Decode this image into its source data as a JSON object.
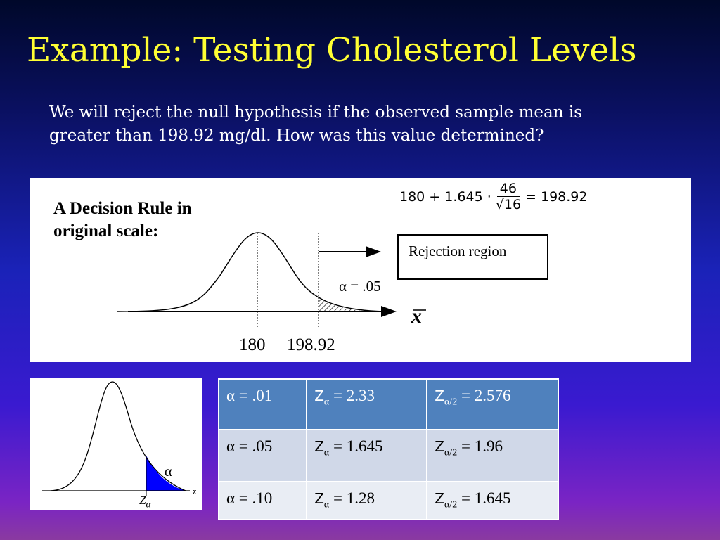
{
  "title": "Example: Testing Cholesterol Levels",
  "body": {
    "line1": "We will reject the null hypothesis if the observed sample mean is",
    "line2": "greater than 198.92 mg/dl.  How was this value determined?"
  },
  "diagram": {
    "heading_line1": "A Decision Rule in",
    "heading_line2": "original scale:",
    "formula": {
      "lhs": "180 + 1.645 ·",
      "numerator": "46",
      "denominator": "√16",
      "rhs": "= 198.92"
    },
    "rejection_label": "Rejection region",
    "alpha_label": "α = .05",
    "axis_label": "x",
    "tick_mean": "180",
    "tick_critical": "198.92"
  },
  "small_diagram": {
    "alpha": "α",
    "z_label": "z",
    "z_alpha": "Z",
    "z_alpha_sub": "α"
  },
  "table": {
    "rows": [
      {
        "alpha": "α = .01",
        "z": "2.33",
        "z2": "2.576"
      },
      {
        "alpha": "α = .05",
        "z": "1.645",
        "z2": "1.96"
      },
      {
        "alpha": "α = .10",
        "z": "1.28",
        "z2": "1.645"
      }
    ],
    "z_prefix": "Z",
    "z_sub": "α",
    "z2_sub": "α/2",
    "eq": " = "
  },
  "colors": {
    "title": "#ffff33",
    "table_header": "#4f81bd",
    "tail_fill": "#0000ff"
  }
}
